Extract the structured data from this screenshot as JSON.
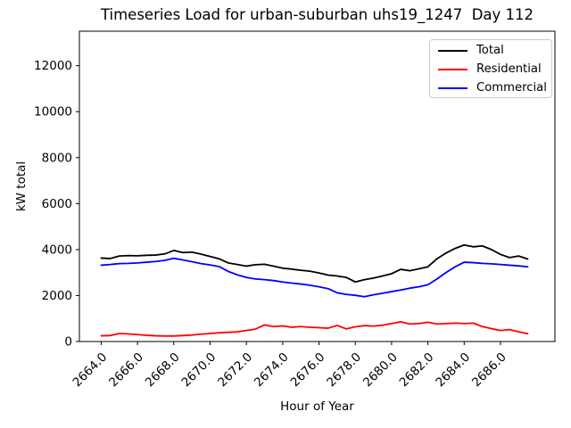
{
  "figure": {
    "title": "Timeseries Load for urban-suburban uhs19_1247  Day 112",
    "background_color": "#ffffff",
    "text_color": "#000000"
  },
  "chart_data": {
    "type": "line",
    "title": "Timeseries Load for urban-suburban uhs19_1247  Day 112",
    "xlabel": "Hour of Year",
    "ylabel": "kW total",
    "xlim": [
      2662.8,
      2689.0
    ],
    "ylim": [
      0,
      13500
    ],
    "grid": false,
    "legend_position": "upper right",
    "x_tick_values": [
      2664,
      2666,
      2668,
      2670,
      2672,
      2674,
      2676,
      2678,
      2680,
      2682,
      2684,
      2686
    ],
    "x_tick_labels": [
      "2664.0",
      "2666.0",
      "2668.0",
      "2670.0",
      "2672.0",
      "2674.0",
      "2676.0",
      "2678.0",
      "2680.0",
      "2682.0",
      "2684.0",
      "2686.0"
    ],
    "y_tick_values": [
      0,
      2000,
      4000,
      6000,
      8000,
      10000,
      12000
    ],
    "y_tick_labels": [
      "0",
      "2000",
      "4000",
      "6000",
      "8000",
      "10000",
      "12000"
    ],
    "x": [
      2664.0,
      2664.5,
      2665.0,
      2665.5,
      2666.0,
      2666.5,
      2667.0,
      2667.5,
      2668.0,
      2668.5,
      2669.0,
      2669.5,
      2670.0,
      2670.5,
      2671.0,
      2671.5,
      2672.0,
      2672.5,
      2673.0,
      2673.5,
      2674.0,
      2674.5,
      2675.0,
      2675.5,
      2676.0,
      2676.5,
      2677.0,
      2677.5,
      2678.0,
      2678.5,
      2679.0,
      2679.5,
      2680.0,
      2680.5,
      2681.0,
      2681.5,
      2682.0,
      2682.5,
      2683.0,
      2683.5,
      2684.0,
      2684.5,
      2685.0,
      2685.5,
      2686.0,
      2686.5,
      2687.0,
      2687.5
    ],
    "series": [
      {
        "name": "Total",
        "color": "#000000",
        "values": [
          3630,
          3610,
          3720,
          3740,
          3730,
          3750,
          3760,
          3810,
          3960,
          3870,
          3890,
          3800,
          3700,
          3600,
          3420,
          3350,
          3280,
          3340,
          3360,
          3280,
          3190,
          3150,
          3100,
          3060,
          2980,
          2890,
          2850,
          2790,
          2590,
          2690,
          2760,
          2850,
          2950,
          3140,
          3080,
          3160,
          3250,
          3600,
          3850,
          4050,
          4200,
          4120,
          4160,
          4000,
          3790,
          3650,
          3720,
          3590
        ]
      },
      {
        "name": "Residential",
        "color": "#ff0000",
        "values": [
          250,
          260,
          350,
          330,
          300,
          270,
          250,
          240,
          240,
          260,
          280,
          320,
          350,
          380,
          400,
          420,
          480,
          540,
          720,
          650,
          680,
          620,
          650,
          620,
          600,
          580,
          700,
          550,
          640,
          690,
          670,
          710,
          780,
          860,
          760,
          780,
          840,
          760,
          780,
          800,
          780,
          800,
          650,
          560,
          480,
          520,
          420,
          340
        ]
      },
      {
        "name": "Commercial",
        "color": "#0000ff",
        "values": [
          3320,
          3350,
          3390,
          3400,
          3420,
          3450,
          3480,
          3530,
          3620,
          3550,
          3470,
          3390,
          3330,
          3260,
          3050,
          2900,
          2790,
          2720,
          2690,
          2650,
          2590,
          2540,
          2500,
          2450,
          2380,
          2300,
          2120,
          2050,
          2010,
          1950,
          2030,
          2100,
          2170,
          2240,
          2320,
          2380,
          2470,
          2720,
          3000,
          3250,
          3450,
          3430,
          3400,
          3380,
          3350,
          3320,
          3290,
          3250
        ]
      }
    ]
  }
}
